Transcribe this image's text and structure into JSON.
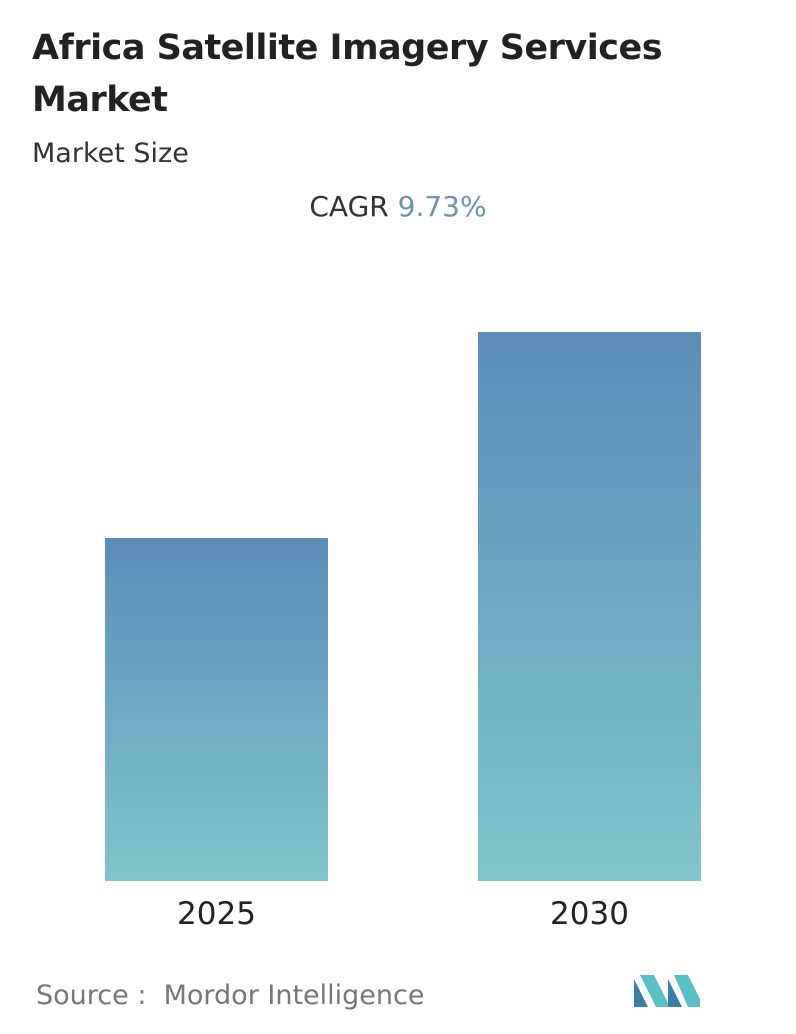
{
  "chart_data": {
    "type": "bar",
    "title": "Africa Satellite Imagery Services Market",
    "subtitle": "Market Size",
    "cagr_label": "CAGR",
    "cagr_value": "9.73%",
    "categories": [
      "2025",
      "2030"
    ],
    "values": [
      1,
      1.6
    ],
    "ylim": [
      0,
      1.6
    ],
    "color_top": "#5b8db8",
    "color_bottom": "#80c5cc",
    "source_label": "Source :",
    "source": "Mordor Intelligence"
  }
}
